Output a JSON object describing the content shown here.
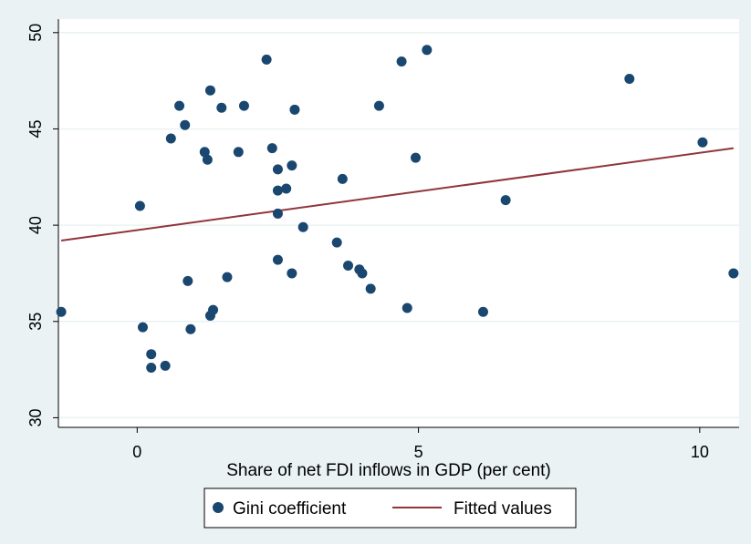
{
  "chart_data": {
    "type": "scatter",
    "title": "",
    "xlabel": "Share of net FDI inflows in GDP (per cent)",
    "ylabel": "",
    "xlim": [
      -1.4,
      10.7
    ],
    "ylim": [
      29.5,
      50.7
    ],
    "xticks": [
      0,
      5,
      10
    ],
    "yticks": [
      30,
      35,
      40,
      45,
      50
    ],
    "grid": true,
    "legend_position": "bottom",
    "colors": {
      "points": "#1a476f",
      "line": "#90353b",
      "background": "#eaf2f3",
      "plot_area": "#ffffff",
      "grid": "#eaf2f3"
    },
    "series": [
      {
        "name": "Gini coefficient",
        "kind": "scatter",
        "points": [
          [
            -1.35,
            35.5
          ],
          [
            0.05,
            41.0
          ],
          [
            0.1,
            34.7
          ],
          [
            0.25,
            33.3
          ],
          [
            0.25,
            32.6
          ],
          [
            0.5,
            32.7
          ],
          [
            0.6,
            44.5
          ],
          [
            0.75,
            46.2
          ],
          [
            0.85,
            45.2
          ],
          [
            0.9,
            37.1
          ],
          [
            0.95,
            34.6
          ],
          [
            1.2,
            43.8
          ],
          [
            1.25,
            43.4
          ],
          [
            1.3,
            47.0
          ],
          [
            1.3,
            35.3
          ],
          [
            1.35,
            35.6
          ],
          [
            1.5,
            46.1
          ],
          [
            1.6,
            37.3
          ],
          [
            1.8,
            43.8
          ],
          [
            1.9,
            46.2
          ],
          [
            2.3,
            48.6
          ],
          [
            2.4,
            44.0
          ],
          [
            2.5,
            42.9
          ],
          [
            2.5,
            41.8
          ],
          [
            2.5,
            40.6
          ],
          [
            2.5,
            38.2
          ],
          [
            2.65,
            41.9
          ],
          [
            2.75,
            43.1
          ],
          [
            2.75,
            37.5
          ],
          [
            2.8,
            46.0
          ],
          [
            2.95,
            39.9
          ],
          [
            3.55,
            39.1
          ],
          [
            3.65,
            42.4
          ],
          [
            3.75,
            37.9
          ],
          [
            3.95,
            37.7
          ],
          [
            4.0,
            37.5
          ],
          [
            4.15,
            36.7
          ],
          [
            4.3,
            46.2
          ],
          [
            4.7,
            48.5
          ],
          [
            4.8,
            35.7
          ],
          [
            4.95,
            43.5
          ],
          [
            5.15,
            49.1
          ],
          [
            6.15,
            35.5
          ],
          [
            6.55,
            41.3
          ],
          [
            8.75,
            47.6
          ],
          [
            10.05,
            44.3
          ],
          [
            10.6,
            37.5
          ]
        ]
      },
      {
        "name": "Fitted values",
        "kind": "line",
        "points": [
          [
            -1.35,
            39.2
          ],
          [
            10.6,
            44.0
          ]
        ]
      }
    ]
  }
}
